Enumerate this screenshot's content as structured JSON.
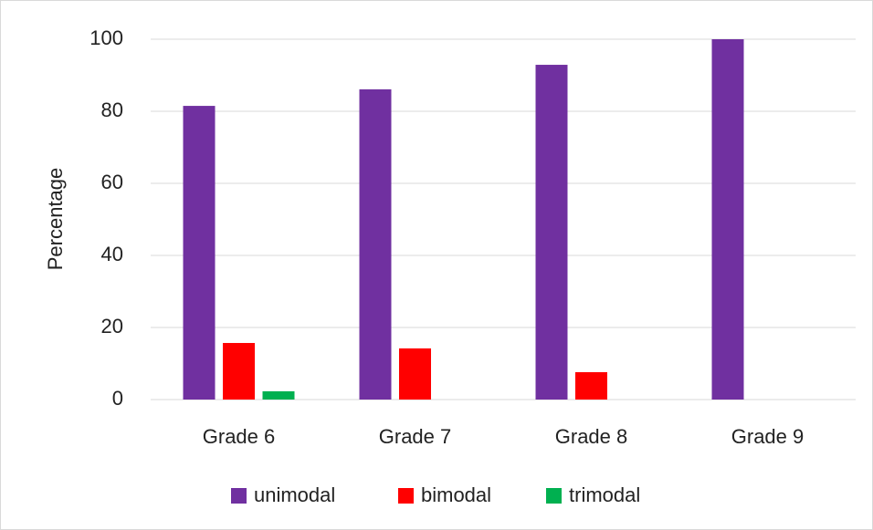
{
  "chart_data": {
    "type": "bar",
    "y_label": "Percentage",
    "categories": [
      "Grade 6",
      "Grade 7",
      "Grade 8",
      "Grade 9"
    ],
    "series": [
      {
        "name": "unimodal",
        "color": "#7030a0",
        "values": [
          81.5,
          86.1,
          92.9,
          100
        ]
      },
      {
        "name": "bimodal",
        "color": "#ff0000",
        "values": [
          15.7,
          14.2,
          7.6,
          0
        ]
      },
      {
        "name": "trimodal",
        "color": "#00b050",
        "values": [
          2.3,
          0,
          0,
          0
        ]
      }
    ],
    "ylim": [
      0,
      100
    ],
    "yticks": [
      0,
      20,
      40,
      60,
      80,
      100
    ],
    "grid": true,
    "legend": "bottom"
  }
}
